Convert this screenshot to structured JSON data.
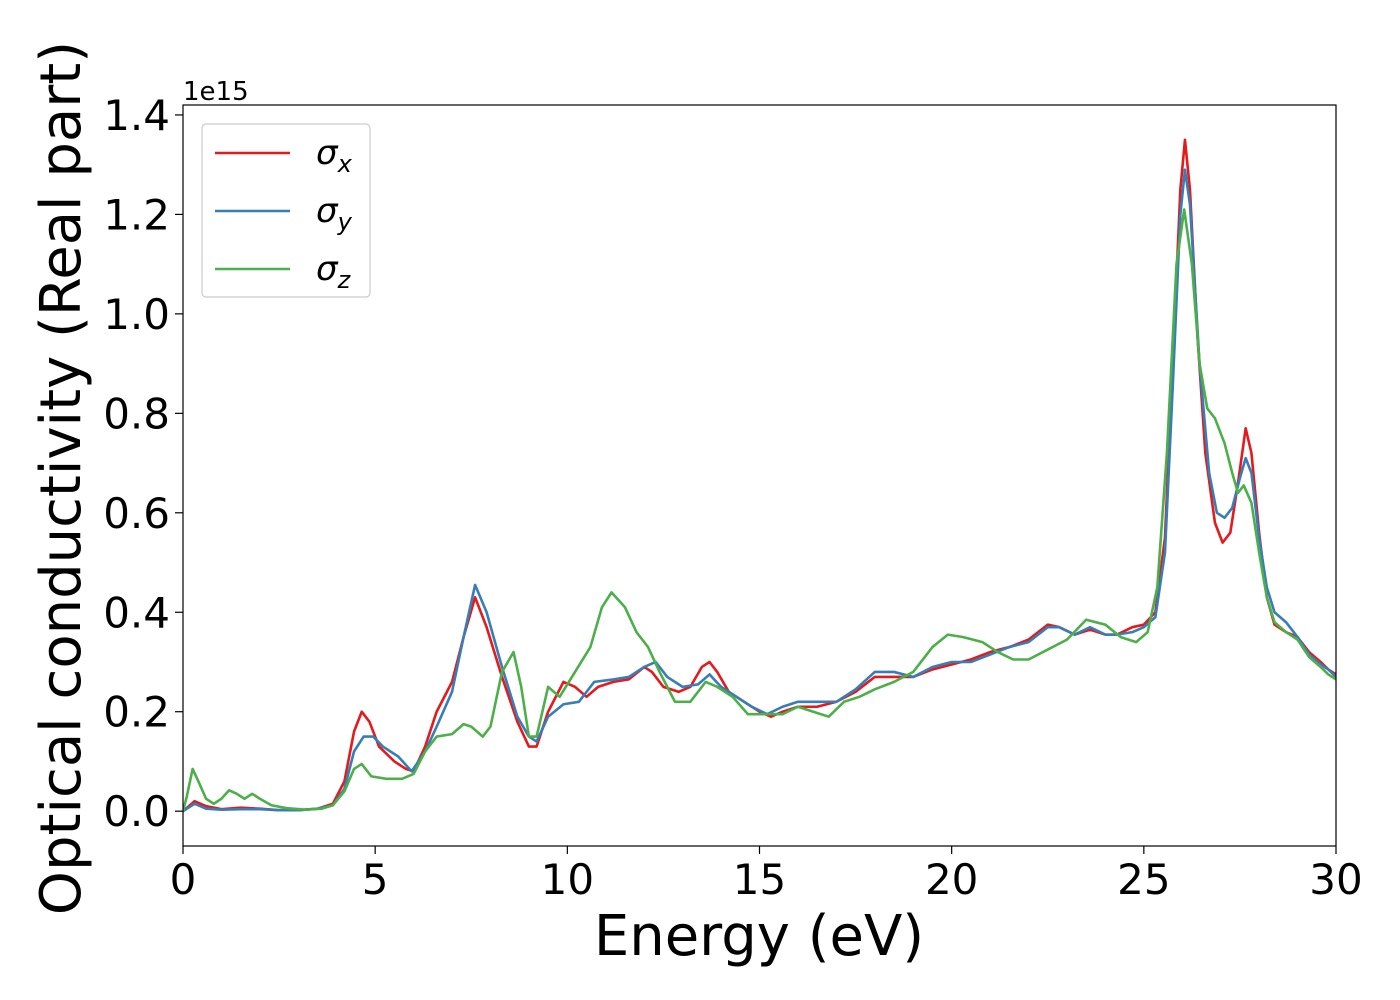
{
  "chart_data": {
    "type": "line",
    "xlabel": "Energy (eV)",
    "ylabel": "Optical conductivity (Real part)",
    "y_scale_label": "1e15",
    "xlim": [
      0,
      30
    ],
    "ylim": [
      -0.07,
      1.42
    ],
    "xticks": [
      0,
      5,
      10,
      15,
      20,
      25,
      30
    ],
    "yticks": [
      0.0,
      0.2,
      0.4,
      0.6,
      0.8,
      1.0,
      1.2,
      1.4
    ],
    "xtick_labels": [
      "0",
      "5",
      "10",
      "15",
      "20",
      "25",
      "30"
    ],
    "ytick_labels": [
      "0.0",
      "0.2",
      "0.4",
      "0.6",
      "0.8",
      "1.0",
      "1.2",
      "1.4"
    ],
    "grid": false,
    "legend_position": "top-left",
    "series": [
      {
        "name": "σ_x",
        "legend_base": "σ",
        "legend_sub": "x",
        "color": "#e41a1c",
        "points": [
          [
            0,
            0.0
          ],
          [
            0.3,
            0.02
          ],
          [
            0.6,
            0.01
          ],
          [
            1.0,
            0.004
          ],
          [
            1.5,
            0.007
          ],
          [
            2.0,
            0.005
          ],
          [
            2.5,
            0.002
          ],
          [
            3.0,
            0.002
          ],
          [
            3.5,
            0.005
          ],
          [
            3.9,
            0.015
          ],
          [
            4.2,
            0.06
          ],
          [
            4.45,
            0.16
          ],
          [
            4.65,
            0.2
          ],
          [
            4.85,
            0.18
          ],
          [
            5.1,
            0.13
          ],
          [
            5.5,
            0.1
          ],
          [
            5.8,
            0.085
          ],
          [
            6.0,
            0.08
          ],
          [
            6.3,
            0.13
          ],
          [
            6.6,
            0.2
          ],
          [
            7.0,
            0.26
          ],
          [
            7.3,
            0.35
          ],
          [
            7.6,
            0.43
          ],
          [
            7.9,
            0.37
          ],
          [
            8.3,
            0.27
          ],
          [
            8.7,
            0.18
          ],
          [
            9.0,
            0.13
          ],
          [
            9.2,
            0.13
          ],
          [
            9.5,
            0.2
          ],
          [
            9.9,
            0.26
          ],
          [
            10.2,
            0.25
          ],
          [
            10.5,
            0.23
          ],
          [
            10.8,
            0.25
          ],
          [
            11.2,
            0.26
          ],
          [
            11.6,
            0.265
          ],
          [
            12.0,
            0.29
          ],
          [
            12.2,
            0.28
          ],
          [
            12.5,
            0.25
          ],
          [
            12.9,
            0.24
          ],
          [
            13.2,
            0.25
          ],
          [
            13.5,
            0.29
          ],
          [
            13.7,
            0.3
          ],
          [
            13.9,
            0.28
          ],
          [
            14.2,
            0.24
          ],
          [
            14.6,
            0.22
          ],
          [
            15.0,
            0.2
          ],
          [
            15.3,
            0.19
          ],
          [
            15.6,
            0.2
          ],
          [
            16.0,
            0.21
          ],
          [
            16.5,
            0.21
          ],
          [
            17.0,
            0.22
          ],
          [
            17.5,
            0.24
          ],
          [
            18.0,
            0.27
          ],
          [
            18.5,
            0.27
          ],
          [
            19.0,
            0.27
          ],
          [
            19.5,
            0.285
          ],
          [
            20.0,
            0.295
          ],
          [
            20.5,
            0.305
          ],
          [
            21.0,
            0.32
          ],
          [
            21.5,
            0.33
          ],
          [
            22.0,
            0.345
          ],
          [
            22.5,
            0.375
          ],
          [
            22.8,
            0.37
          ],
          [
            23.2,
            0.355
          ],
          [
            23.6,
            0.365
          ],
          [
            24.0,
            0.355
          ],
          [
            24.3,
            0.355
          ],
          [
            24.7,
            0.37
          ],
          [
            25.0,
            0.375
          ],
          [
            25.3,
            0.4
          ],
          [
            25.55,
            0.55
          ],
          [
            25.75,
            0.9
          ],
          [
            25.95,
            1.25
          ],
          [
            26.07,
            1.35
          ],
          [
            26.2,
            1.25
          ],
          [
            26.4,
            0.95
          ],
          [
            26.6,
            0.72
          ],
          [
            26.85,
            0.58
          ],
          [
            27.05,
            0.54
          ],
          [
            27.25,
            0.56
          ],
          [
            27.45,
            0.66
          ],
          [
            27.65,
            0.77
          ],
          [
            27.8,
            0.72
          ],
          [
            28.0,
            0.56
          ],
          [
            28.2,
            0.43
          ],
          [
            28.4,
            0.375
          ],
          [
            28.7,
            0.36
          ],
          [
            29.0,
            0.35
          ],
          [
            29.3,
            0.32
          ],
          [
            29.6,
            0.3
          ],
          [
            29.8,
            0.285
          ],
          [
            30.0,
            0.275
          ]
        ]
      },
      {
        "name": "σ_y",
        "legend_base": "σ",
        "legend_sub": "y",
        "color": "#377eb8",
        "points": [
          [
            0,
            0.0
          ],
          [
            0.3,
            0.015
          ],
          [
            0.6,
            0.005
          ],
          [
            1.0,
            0.003
          ],
          [
            1.5,
            0.004
          ],
          [
            2.0,
            0.004
          ],
          [
            2.5,
            0.002
          ],
          [
            3.0,
            0.002
          ],
          [
            3.5,
            0.005
          ],
          [
            3.9,
            0.012
          ],
          [
            4.2,
            0.045
          ],
          [
            4.45,
            0.12
          ],
          [
            4.7,
            0.15
          ],
          [
            4.95,
            0.15
          ],
          [
            5.2,
            0.13
          ],
          [
            5.6,
            0.11
          ],
          [
            5.95,
            0.08
          ],
          [
            6.3,
            0.12
          ],
          [
            6.6,
            0.17
          ],
          [
            7.0,
            0.24
          ],
          [
            7.3,
            0.35
          ],
          [
            7.6,
            0.455
          ],
          [
            7.9,
            0.4
          ],
          [
            8.3,
            0.29
          ],
          [
            8.7,
            0.19
          ],
          [
            9.0,
            0.15
          ],
          [
            9.2,
            0.14
          ],
          [
            9.5,
            0.19
          ],
          [
            9.9,
            0.215
          ],
          [
            10.3,
            0.22
          ],
          [
            10.7,
            0.26
          ],
          [
            11.2,
            0.265
          ],
          [
            11.6,
            0.27
          ],
          [
            12.0,
            0.29
          ],
          [
            12.3,
            0.3
          ],
          [
            12.6,
            0.27
          ],
          [
            13.0,
            0.25
          ],
          [
            13.4,
            0.255
          ],
          [
            13.7,
            0.275
          ],
          [
            14.0,
            0.25
          ],
          [
            14.4,
            0.23
          ],
          [
            14.8,
            0.21
          ],
          [
            15.2,
            0.195
          ],
          [
            15.6,
            0.21
          ],
          [
            16.0,
            0.22
          ],
          [
            16.5,
            0.22
          ],
          [
            17.0,
            0.22
          ],
          [
            17.5,
            0.245
          ],
          [
            18.0,
            0.28
          ],
          [
            18.5,
            0.28
          ],
          [
            19.0,
            0.27
          ],
          [
            19.5,
            0.29
          ],
          [
            20.0,
            0.3
          ],
          [
            20.5,
            0.3
          ],
          [
            21.0,
            0.315
          ],
          [
            21.5,
            0.33
          ],
          [
            22.0,
            0.34
          ],
          [
            22.5,
            0.37
          ],
          [
            22.8,
            0.37
          ],
          [
            23.2,
            0.355
          ],
          [
            23.6,
            0.37
          ],
          [
            24.0,
            0.355
          ],
          [
            24.3,
            0.355
          ],
          [
            24.7,
            0.36
          ],
          [
            25.0,
            0.37
          ],
          [
            25.3,
            0.39
          ],
          [
            25.55,
            0.52
          ],
          [
            25.75,
            0.85
          ],
          [
            25.95,
            1.2
          ],
          [
            26.07,
            1.29
          ],
          [
            26.2,
            1.22
          ],
          [
            26.45,
            0.9
          ],
          [
            26.7,
            0.68
          ],
          [
            26.9,
            0.6
          ],
          [
            27.1,
            0.59
          ],
          [
            27.3,
            0.61
          ],
          [
            27.5,
            0.67
          ],
          [
            27.65,
            0.71
          ],
          [
            27.8,
            0.68
          ],
          [
            28.0,
            0.55
          ],
          [
            28.2,
            0.45
          ],
          [
            28.4,
            0.4
          ],
          [
            28.7,
            0.38
          ],
          [
            29.0,
            0.35
          ],
          [
            29.3,
            0.315
          ],
          [
            29.6,
            0.295
          ],
          [
            29.8,
            0.285
          ],
          [
            30.0,
            0.27
          ]
        ]
      },
      {
        "name": "σ_z",
        "legend_base": "σ",
        "legend_sub": "z",
        "color": "#4daf4a",
        "points": [
          [
            0,
            0.0
          ],
          [
            0.1,
            0.03
          ],
          [
            0.25,
            0.085
          ],
          [
            0.4,
            0.06
          ],
          [
            0.6,
            0.025
          ],
          [
            0.8,
            0.015
          ],
          [
            1.0,
            0.025
          ],
          [
            1.2,
            0.042
          ],
          [
            1.4,
            0.035
          ],
          [
            1.6,
            0.025
          ],
          [
            1.8,
            0.035
          ],
          [
            2.0,
            0.025
          ],
          [
            2.3,
            0.012
          ],
          [
            2.7,
            0.006
          ],
          [
            3.2,
            0.003
          ],
          [
            3.6,
            0.005
          ],
          [
            3.9,
            0.012
          ],
          [
            4.2,
            0.04
          ],
          [
            4.45,
            0.085
          ],
          [
            4.65,
            0.095
          ],
          [
            4.9,
            0.07
          ],
          [
            5.3,
            0.065
          ],
          [
            5.7,
            0.065
          ],
          [
            6.0,
            0.075
          ],
          [
            6.3,
            0.12
          ],
          [
            6.6,
            0.15
          ],
          [
            7.0,
            0.155
          ],
          [
            7.3,
            0.175
          ],
          [
            7.5,
            0.17
          ],
          [
            7.8,
            0.15
          ],
          [
            8.0,
            0.17
          ],
          [
            8.3,
            0.28
          ],
          [
            8.6,
            0.32
          ],
          [
            8.8,
            0.25
          ],
          [
            9.0,
            0.15
          ],
          [
            9.2,
            0.15
          ],
          [
            9.5,
            0.25
          ],
          [
            9.8,
            0.23
          ],
          [
            10.2,
            0.28
          ],
          [
            10.6,
            0.33
          ],
          [
            10.9,
            0.41
          ],
          [
            11.15,
            0.44
          ],
          [
            11.5,
            0.41
          ],
          [
            11.8,
            0.36
          ],
          [
            12.1,
            0.33
          ],
          [
            12.4,
            0.28
          ],
          [
            12.8,
            0.22
          ],
          [
            13.2,
            0.22
          ],
          [
            13.6,
            0.26
          ],
          [
            13.9,
            0.25
          ],
          [
            14.3,
            0.23
          ],
          [
            14.7,
            0.195
          ],
          [
            15.1,
            0.195
          ],
          [
            15.6,
            0.195
          ],
          [
            16.0,
            0.21
          ],
          [
            16.4,
            0.2
          ],
          [
            16.8,
            0.19
          ],
          [
            17.2,
            0.22
          ],
          [
            17.6,
            0.23
          ],
          [
            18.0,
            0.245
          ],
          [
            18.5,
            0.26
          ],
          [
            19.0,
            0.28
          ],
          [
            19.5,
            0.33
          ],
          [
            19.9,
            0.355
          ],
          [
            20.3,
            0.35
          ],
          [
            20.8,
            0.34
          ],
          [
            21.2,
            0.32
          ],
          [
            21.6,
            0.305
          ],
          [
            22.0,
            0.305
          ],
          [
            22.5,
            0.325
          ],
          [
            23.0,
            0.345
          ],
          [
            23.5,
            0.385
          ],
          [
            24.0,
            0.375
          ],
          [
            24.4,
            0.35
          ],
          [
            24.8,
            0.34
          ],
          [
            25.1,
            0.36
          ],
          [
            25.35,
            0.45
          ],
          [
            25.6,
            0.72
          ],
          [
            25.85,
            1.1
          ],
          [
            26.05,
            1.21
          ],
          [
            26.25,
            1.1
          ],
          [
            26.45,
            0.9
          ],
          [
            26.65,
            0.81
          ],
          [
            26.85,
            0.79
          ],
          [
            27.1,
            0.74
          ],
          [
            27.3,
            0.68
          ],
          [
            27.45,
            0.64
          ],
          [
            27.6,
            0.655
          ],
          [
            27.8,
            0.62
          ],
          [
            28.0,
            0.52
          ],
          [
            28.2,
            0.43
          ],
          [
            28.4,
            0.38
          ],
          [
            28.7,
            0.36
          ],
          [
            29.0,
            0.345
          ],
          [
            29.3,
            0.31
          ],
          [
            29.6,
            0.29
          ],
          [
            29.8,
            0.275
          ],
          [
            30.0,
            0.265
          ]
        ]
      }
    ]
  }
}
